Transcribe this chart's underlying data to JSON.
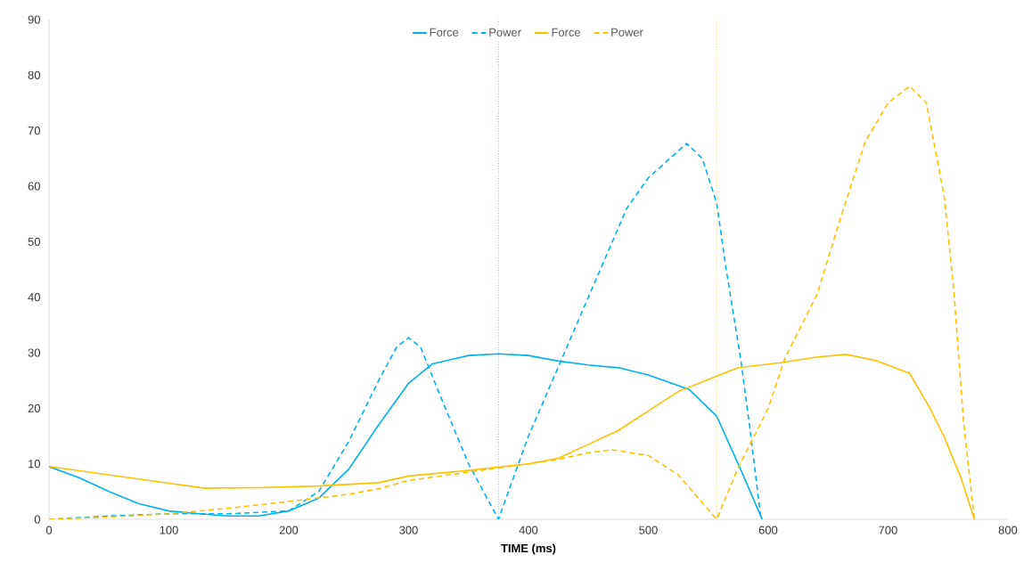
{
  "chart_data": {
    "type": "line",
    "xlabel": "**TIME (ms)**",
    "xlim": [
      0,
      800
    ],
    "xticks": [
      0,
      100,
      200,
      300,
      400,
      500,
      600,
      700,
      800
    ],
    "ylim": [
      0,
      90
    ],
    "yticks": [
      0,
      10,
      20,
      30,
      40,
      50,
      60,
      70,
      80,
      90
    ],
    "grid": false,
    "legend": "top",
    "marker": "none",
    "series": [
      {
        "name": "Force",
        "color": "#00b0f0",
        "line_style": "solid",
        "x": [
          0,
          25,
          50,
          75,
          100,
          125,
          150,
          175,
          200,
          225,
          250,
          275,
          300,
          320,
          350,
          375,
          400,
          425,
          450,
          475,
          500,
          534,
          557,
          577,
          595
        ],
        "values": [
          9.5,
          7.5,
          5,
          2.8,
          1.5,
          1,
          0.6,
          0.6,
          1.5,
          3.8,
          9,
          17,
          24.5,
          28,
          29.5,
          29.8,
          29.5,
          28.5,
          27.8,
          27.3,
          26,
          23.4,
          18.6,
          9,
          0
        ]
      },
      {
        "name": "Power",
        "color": "#00b0f0",
        "line_style": "dashed",
        "x": [
          0,
          50,
          100,
          150,
          200,
          225,
          250,
          275,
          290,
          300,
          310,
          325,
          350,
          375,
          400,
          428,
          450,
          482,
          500,
          532,
          545,
          557,
          565,
          577,
          585,
          594
        ],
        "values": [
          0,
          0.6,
          1,
          1,
          1.5,
          5,
          14,
          25,
          31,
          32.7,
          31,
          23,
          10,
          0,
          15,
          29,
          40,
          56,
          61.5,
          67.7,
          65,
          57,
          45,
          29,
          16,
          0
        ]
      },
      {
        "name": "Force",
        "color": "#ffc000",
        "line_style": "solid",
        "x": [
          0,
          50,
          100,
          130,
          175,
          225,
          275,
          300,
          350,
          400,
          425,
          450,
          475,
          500,
          525,
          557,
          575,
          610,
          640,
          665,
          690,
          718,
          735,
          747,
          761,
          772
        ],
        "values": [
          9.5,
          8,
          6.5,
          5.6,
          5.7,
          6,
          6.6,
          7.8,
          8.8,
          10,
          11,
          13.5,
          16,
          19.5,
          23,
          25.8,
          27.3,
          28.2,
          29.2,
          29.7,
          28.6,
          26.3,
          20,
          14.8,
          7.4,
          0
        ]
      },
      {
        "name": "Power",
        "color": "#ffc000",
        "line_style": "dashed",
        "x": [
          0,
          50,
          100,
          150,
          200,
          250,
          275,
          300,
          350,
          400,
          425,
          450,
          470,
          500,
          525,
          545,
          557,
          575,
          588,
          600,
          614,
          641,
          660,
          681,
          700,
          718,
          732,
          747,
          755,
          763,
          772
        ],
        "values": [
          0,
          0.4,
          1,
          2,
          3.2,
          4.5,
          5.5,
          7,
          8.5,
          10,
          10.8,
          12,
          12.5,
          11.5,
          8,
          3,
          0,
          9.3,
          14.8,
          20,
          29,
          40.6,
          54,
          68,
          75,
          78,
          75,
          58,
          41,
          17.6,
          0
        ]
      }
    ],
    "ref_lines": [
      {
        "axis": "x",
        "value": 375,
        "color": "#00b0f0",
        "line_style": "dotted"
      },
      {
        "axis": "x",
        "value": 557,
        "color": "#ffc000",
        "line_style": "dotted"
      }
    ]
  }
}
